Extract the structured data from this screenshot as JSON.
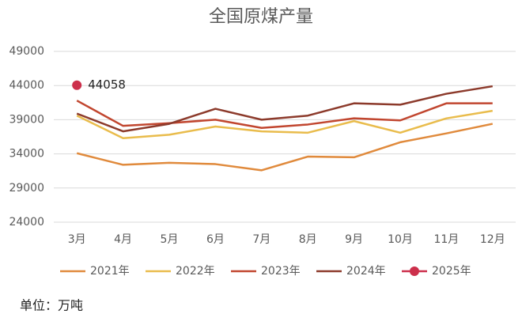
{
  "chart_data": {
    "type": "line",
    "title": "全国原煤产量",
    "categories": [
      "3月",
      "4月",
      "5月",
      "6月",
      "7月",
      "8月",
      "9月",
      "10月",
      "11月",
      "12月"
    ],
    "series": [
      {
        "name": "2021年",
        "color": "#e08a3c",
        "values": [
          34100,
          32400,
          32700,
          32500,
          31600,
          33600,
          33500,
          35700,
          37000,
          38400
        ]
      },
      {
        "name": "2022年",
        "color": "#e9bc4c",
        "values": [
          39600,
          36300,
          36800,
          38000,
          37300,
          37100,
          38800,
          37100,
          39200,
          40300
        ]
      },
      {
        "name": "2023年",
        "color": "#c1462f",
        "values": [
          41800,
          38100,
          38500,
          39000,
          37800,
          38300,
          39200,
          38900,
          41400,
          41400
        ]
      },
      {
        "name": "2024年",
        "color": "#8c3a2b",
        "values": [
          39900,
          37300,
          38400,
          40600,
          39000,
          39600,
          41400,
          41200,
          42800,
          43900
        ]
      },
      {
        "name": "2025年",
        "color": "#cc2f4b",
        "values": [
          44058,
          null,
          null,
          null,
          null,
          null,
          null,
          null,
          null,
          null
        ]
      }
    ],
    "ylim": [
      24000,
      49000
    ],
    "yticks": [
      24000,
      29000,
      34000,
      39000,
      44000,
      49000
    ],
    "grid": true,
    "legend": "bottom",
    "note": "单位：万吨"
  }
}
